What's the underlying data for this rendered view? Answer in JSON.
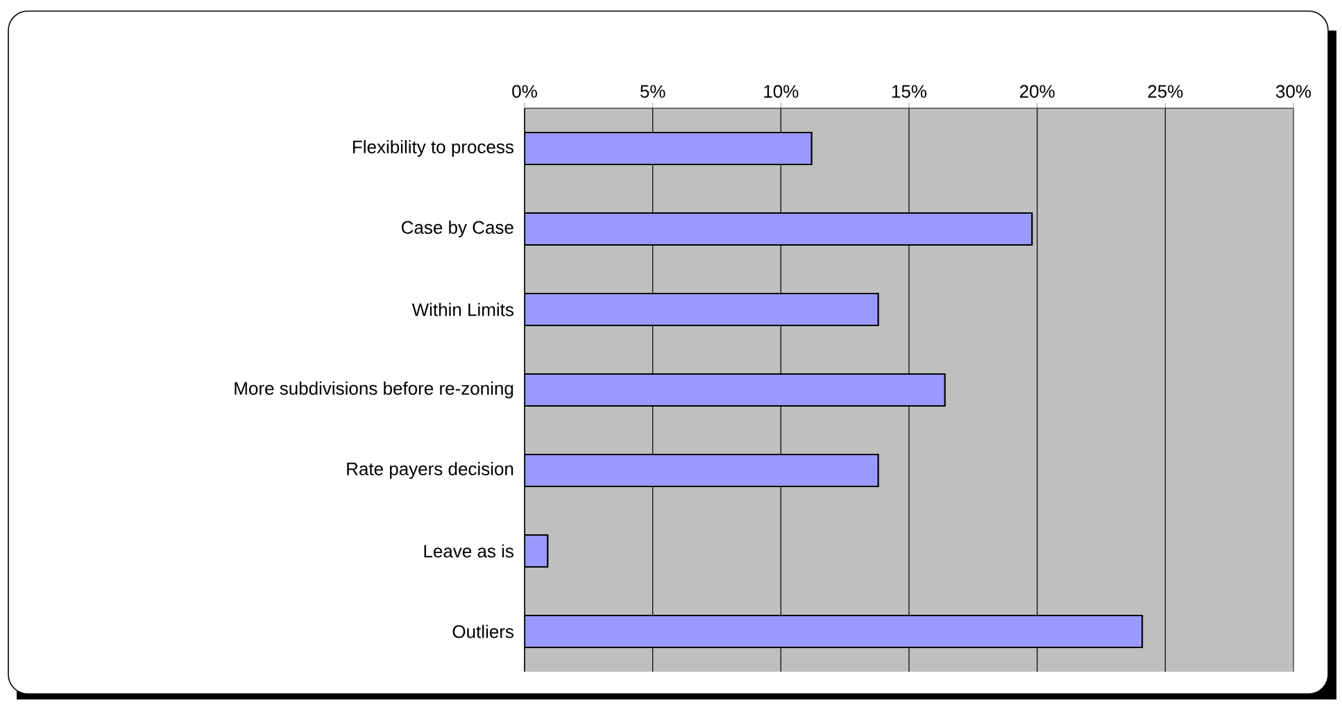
{
  "chart_data": {
    "type": "bar",
    "orientation": "horizontal",
    "categories": [
      "Flexibility to process",
      "Case by Case",
      "Within Limits",
      "More subdivisions before re-zoning",
      "Rate payers decision",
      "Leave as is",
      "Outliers"
    ],
    "values": [
      11.2,
      19.8,
      13.8,
      16.4,
      13.8,
      0.9,
      24.1
    ],
    "color": "#9999ff",
    "xlim": [
      0,
      30
    ],
    "xticks": [
      {
        "value": 0,
        "label": "0%"
      },
      {
        "value": 5,
        "label": "5%"
      },
      {
        "value": 10,
        "label": "10%"
      },
      {
        "value": 15,
        "label": "15%"
      },
      {
        "value": 20,
        "label": "20%"
      },
      {
        "value": 25,
        "label": "25%"
      },
      {
        "value": 30,
        "label": "30%"
      }
    ],
    "grid": "x"
  }
}
